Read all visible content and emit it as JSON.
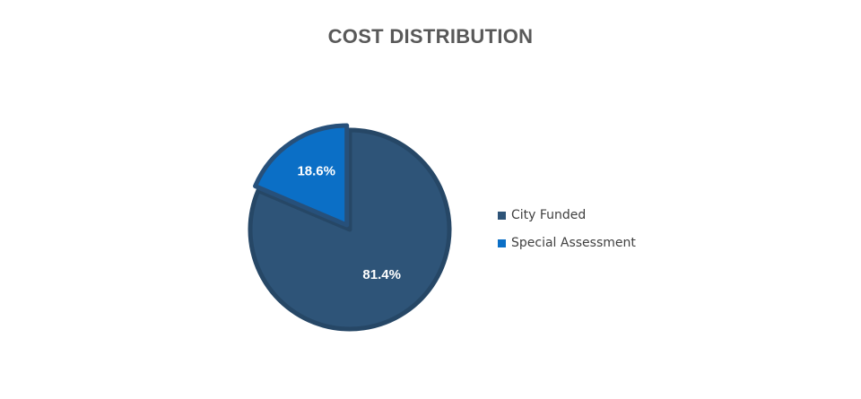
{
  "chart_data": {
    "type": "pie",
    "title": "COST DISTRIBUTION",
    "legend_position": "right",
    "slices": [
      {
        "name": "City Funded",
        "value": 81.4,
        "label": "81.4%",
        "color": "#2e5478",
        "edge_color": "#264766"
      },
      {
        "name": "Special Assessment",
        "value": 18.6,
        "label": "18.6%",
        "color": "#0b6fc6",
        "edge_color": "#27507a"
      }
    ]
  }
}
